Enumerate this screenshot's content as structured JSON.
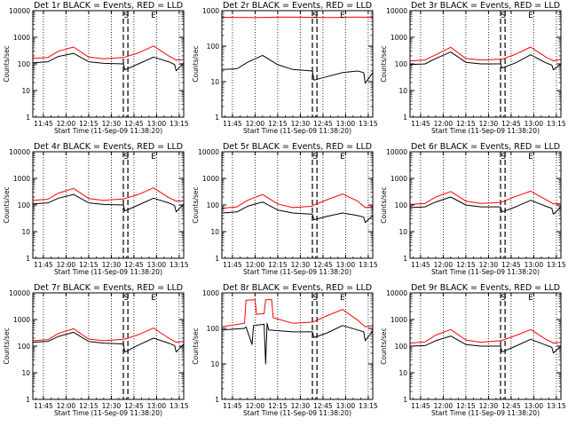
{
  "panel_grid": {
    "columns": 3,
    "rows": 3
  },
  "colors": {
    "events": "#000000",
    "lld": "#ff0000",
    "axes": "#000000"
  },
  "chart_data": [
    {
      "type": "line",
      "title": "Det 1r BLACK = Events, RED = LLD",
      "xlabel": "Start Time (11-Sep-09 11:38:20)",
      "ylabel": "Counts/sec",
      "xlim": [
        "11:38",
        "13:18"
      ],
      "ylim": [
        1,
        10000
      ],
      "yscale": "log",
      "xtick_labels": [
        "11:45",
        "12:00",
        "12:15",
        "12:30",
        "12:45",
        "13:00",
        "13:15"
      ],
      "ytick_labels": [
        "1",
        "10",
        "100",
        "1000",
        "10000"
      ],
      "vlines_dotted": [
        "11:45",
        "12:00",
        "12:15",
        "12:30",
        "12:45",
        "13:00",
        "13:15"
      ],
      "vlines_dashed": [
        "12:38",
        "12:41"
      ],
      "markers": [
        {
          "label": "S",
          "x": "12:41"
        },
        {
          "label": "E",
          "x": "12:58"
        }
      ],
      "series": [
        {
          "x": [
            "11:38",
            "11:48",
            "11:55",
            "12:05",
            "12:15",
            "12:25",
            "12:38",
            "12:39",
            "12:48",
            "12:58",
            "13:08",
            "13:12",
            "13:13",
            "13:18"
          ],
          "values": [
            160,
            175,
            300,
            430,
            180,
            155,
            175,
            180,
            260,
            470,
            200,
            150,
            140,
            145
          ]
        },
        {
          "x": [
            "11:38",
            "11:48",
            "11:55",
            "12:05",
            "12:15",
            "12:25",
            "12:38",
            "12:39",
            "12:48",
            "12:58",
            "13:08",
            "13:12",
            "13:13",
            "13:18"
          ],
          "values": [
            110,
            120,
            190,
            250,
            120,
            105,
            100,
            60,
            100,
            180,
            120,
            95,
            55,
            110
          ]
        }
      ]
    },
    {
      "type": "line",
      "title": "Det 2r BLACK = Events, RED = LLD",
      "xlabel": "Start Time (11-Sep-09 11:38:20)",
      "ylabel": "Counts/sec",
      "xlim": [
        "11:38",
        "13:18"
      ],
      "ylim": [
        1,
        1000
      ],
      "yscale": "log",
      "xtick_labels": [
        "11:45",
        "12:00",
        "12:15",
        "12:30",
        "12:45",
        "13:00",
        "13:15"
      ],
      "ytick_labels": [
        "1",
        "10",
        "100",
        "1000"
      ],
      "vlines_dotted": [
        "11:45",
        "12:00",
        "12:15",
        "12:30",
        "12:45",
        "13:00",
        "13:15"
      ],
      "vlines_dashed": [
        "12:38",
        "12:41"
      ],
      "markers": [
        {
          "label": "S",
          "x": "12:41"
        },
        {
          "label": "E",
          "x": "12:58"
        }
      ],
      "series": [
        {
          "x": [
            "11:38",
            "12:00",
            "12:20",
            "12:38",
            "12:50",
            "13:05",
            "13:18"
          ],
          "values": [
            650,
            640,
            660,
            650,
            640,
            660,
            650
          ]
        },
        {
          "x": [
            "11:38",
            "11:48",
            "11:55",
            "12:05",
            "12:15",
            "12:25",
            "12:38",
            "12:39",
            "12:48",
            "12:58",
            "13:08",
            "13:12",
            "13:13",
            "13:18"
          ],
          "values": [
            22,
            23,
            35,
            55,
            30,
            22,
            20,
            11,
            14,
            18,
            20,
            18,
            9,
            18
          ]
        }
      ]
    },
    {
      "type": "line",
      "title": "Det 3r BLACK = Events, RED = LLD",
      "xlabel": "Start Time (11-Sep-09 11:38:20)",
      "ylabel": "Counts/sec",
      "xlim": [
        "11:38",
        "13:18"
      ],
      "ylim": [
        1,
        10000
      ],
      "yscale": "log",
      "xtick_labels": [
        "11:45",
        "12:00",
        "12:15",
        "12:30",
        "12:45",
        "13:00",
        "13:15"
      ],
      "ytick_labels": [
        "1",
        "10",
        "100",
        "1000",
        "10000"
      ],
      "vlines_dotted": [
        "11:45",
        "12:00",
        "12:15",
        "12:30",
        "12:45",
        "13:00",
        "13:15"
      ],
      "vlines_dashed": [
        "12:38",
        "12:41"
      ],
      "markers": [
        {
          "label": "S",
          "x": "12:41"
        },
        {
          "label": "E",
          "x": "12:58"
        }
      ],
      "series": [
        {
          "x": [
            "11:38",
            "11:48",
            "11:55",
            "12:05",
            "12:15",
            "12:25",
            "12:38",
            "12:39",
            "12:48",
            "12:58",
            "13:08",
            "13:12",
            "13:13",
            "13:18"
          ],
          "values": [
            130,
            140,
            220,
            420,
            160,
            140,
            150,
            150,
            230,
            430,
            180,
            140,
            130,
            150
          ]
        },
        {
          "x": [
            "11:38",
            "11:48",
            "11:55",
            "12:05",
            "12:15",
            "12:25",
            "12:38",
            "12:39",
            "12:48",
            "12:58",
            "13:08",
            "13:12",
            "13:13",
            "13:18"
          ],
          "values": [
            95,
            100,
            160,
            280,
            115,
            100,
            100,
            70,
            110,
            220,
            110,
            90,
            60,
            100
          ]
        }
      ]
    },
    {
      "type": "line",
      "title": "Det 4r BLACK = Events, RED = LLD",
      "xlabel": "Start Time (11-Sep-09 11:38:20)",
      "ylabel": "Counts/sec",
      "xlim": [
        "11:38",
        "13:18"
      ],
      "ylim": [
        1,
        10000
      ],
      "yscale": "log",
      "xtick_labels": [
        "11:45",
        "12:00",
        "12:15",
        "12:30",
        "12:45",
        "13:00",
        "13:15"
      ],
      "ytick_labels": [
        "1",
        "10",
        "100",
        "1000",
        "10000"
      ],
      "vlines_dotted": [
        "11:45",
        "12:00",
        "12:15",
        "12:30",
        "12:45",
        "13:00",
        "13:15"
      ],
      "vlines_dashed": [
        "12:38",
        "12:41"
      ],
      "markers": [
        {
          "label": "S",
          "x": "12:41"
        },
        {
          "label": "E",
          "x": "12:58"
        }
      ],
      "series": [
        {
          "x": [
            "11:38",
            "11:48",
            "11:55",
            "12:05",
            "12:15",
            "12:25",
            "12:38",
            "12:39",
            "12:48",
            "12:58",
            "13:08",
            "13:12",
            "13:13",
            "13:18"
          ],
          "values": [
            150,
            165,
            280,
            420,
            175,
            150,
            170,
            175,
            250,
            440,
            190,
            150,
            140,
            145
          ]
        },
        {
          "x": [
            "11:38",
            "11:48",
            "11:55",
            "12:05",
            "12:15",
            "12:25",
            "12:38",
            "12:39",
            "12:48",
            "12:58",
            "13:08",
            "13:12",
            "13:13",
            "13:18"
          ],
          "values": [
            110,
            120,
            180,
            250,
            120,
            105,
            100,
            60,
            100,
            180,
            120,
            95,
            55,
            110
          ]
        }
      ]
    },
    {
      "type": "line",
      "title": "Det 5r BLACK = Events, RED = LLD",
      "xlabel": "Start Time (11-Sep-09 11:38:20)",
      "ylabel": "Counts/sec",
      "xlim": [
        "11:38",
        "13:18"
      ],
      "ylim": [
        1,
        10000
      ],
      "yscale": "log",
      "xtick_labels": [
        "11:45",
        "12:00",
        "12:15",
        "12:30",
        "12:45",
        "13:00",
        "13:15"
      ],
      "ytick_labels": [
        "1",
        "10",
        "100",
        "1000",
        "10000"
      ],
      "vlines_dotted": [
        "11:45",
        "12:00",
        "12:15",
        "12:30",
        "12:45",
        "13:00",
        "13:15"
      ],
      "vlines_dashed": [
        "12:38",
        "12:41"
      ],
      "markers": [
        {
          "label": "S",
          "x": "12:41"
        },
        {
          "label": "E",
          "x": "12:58"
        }
      ],
      "series": [
        {
          "x": [
            "11:38",
            "11:48",
            "11:55",
            "12:05",
            "12:15",
            "12:25",
            "12:38",
            "12:39",
            "12:48",
            "12:58",
            "13:08",
            "13:12",
            "13:13",
            "13:18"
          ],
          "values": [
            75,
            85,
            150,
            250,
            110,
            80,
            90,
            100,
            160,
            260,
            140,
            90,
            80,
            85
          ]
        },
        {
          "x": [
            "11:38",
            "11:48",
            "11:55",
            "12:05",
            "12:15",
            "12:25",
            "12:38",
            "12:39",
            "12:48",
            "12:58",
            "13:08",
            "13:12",
            "13:13",
            "13:18"
          ],
          "values": [
            50,
            55,
            90,
            130,
            65,
            50,
            45,
            28,
            38,
            50,
            40,
            35,
            22,
            40
          ]
        }
      ]
    },
    {
      "type": "line",
      "title": "Det 6r BLACK = Events, RED = LLD",
      "xlabel": "Start Time (11-Sep-09 11:38:20)",
      "ylabel": "Counts/sec",
      "xlim": [
        "11:38",
        "13:18"
      ],
      "ylim": [
        1,
        10000
      ],
      "yscale": "log",
      "xtick_labels": [
        "11:45",
        "12:00",
        "12:15",
        "12:30",
        "12:45",
        "13:00",
        "13:15"
      ],
      "ytick_labels": [
        "1",
        "10",
        "100",
        "1000",
        "10000"
      ],
      "vlines_dotted": [
        "11:45",
        "12:00",
        "12:15",
        "12:30",
        "12:45",
        "13:00",
        "13:15"
      ],
      "vlines_dashed": [
        "12:38",
        "12:41"
      ],
      "markers": [
        {
          "label": "S",
          "x": "12:41"
        },
        {
          "label": "E",
          "x": "12:58"
        }
      ],
      "series": [
        {
          "x": [
            "11:38",
            "11:48",
            "11:55",
            "12:05",
            "12:15",
            "12:25",
            "12:38",
            "12:39",
            "12:48",
            "12:58",
            "13:08",
            "13:12",
            "13:13",
            "13:18"
          ],
          "values": [
            105,
            115,
            200,
            320,
            140,
            115,
            125,
            130,
            210,
            330,
            160,
            120,
            110,
            115
          ]
        },
        {
          "x": [
            "11:38",
            "11:48",
            "11:55",
            "12:05",
            "12:15",
            "12:25",
            "12:38",
            "12:39",
            "12:48",
            "12:58",
            "13:08",
            "13:12",
            "13:13",
            "13:18"
          ],
          "values": [
            80,
            85,
            130,
            200,
            100,
            85,
            85,
            55,
            85,
            150,
            90,
            75,
            45,
            85
          ]
        }
      ]
    },
    {
      "type": "line",
      "title": "Det 7r BLACK = Events, RED = LLD",
      "xlabel": "Start Time (11-Sep-09 11:38:20)",
      "ylabel": "Counts/sec",
      "xlim": [
        "11:38",
        "13:18"
      ],
      "ylim": [
        1,
        10000
      ],
      "yscale": "log",
      "xtick_labels": [
        "11:45",
        "12:00",
        "12:15",
        "12:30",
        "12:45",
        "13:00",
        "13:15"
      ],
      "ytick_labels": [
        "1",
        "10",
        "100",
        "1000",
        "10000"
      ],
      "vlines_dotted": [
        "11:45",
        "12:00",
        "12:15",
        "12:30",
        "12:45",
        "13:00",
        "13:15"
      ],
      "vlines_dashed": [
        "12:38",
        "12:41"
      ],
      "markers": [
        {
          "label": "S",
          "x": "12:41"
        },
        {
          "label": "E",
          "x": "12:58"
        }
      ],
      "series": [
        {
          "x": [
            "11:38",
            "11:48",
            "11:55",
            "12:05",
            "12:15",
            "12:25",
            "12:38",
            "12:39",
            "12:48",
            "12:58",
            "13:08",
            "13:12",
            "13:13",
            "13:18"
          ],
          "values": [
            160,
            175,
            300,
            450,
            185,
            160,
            180,
            185,
            270,
            480,
            200,
            150,
            140,
            150
          ]
        },
        {
          "x": [
            "11:38",
            "11:48",
            "11:55",
            "12:05",
            "12:15",
            "12:25",
            "12:38",
            "12:39",
            "12:48",
            "12:58",
            "13:08",
            "13:12",
            "13:13",
            "13:18"
          ],
          "values": [
            140,
            150,
            230,
            330,
            150,
            130,
            120,
            60,
            110,
            200,
            130,
            105,
            60,
            120
          ]
        }
      ]
    },
    {
      "type": "line",
      "title": "Det 8r BLACK = Events, RED = LLD",
      "xlabel": "Start Time (11-Sep-09 11:38:20)",
      "ylabel": "Counts/sec",
      "xlim": [
        "11:38",
        "13:18"
      ],
      "ylim": [
        1,
        1000
      ],
      "yscale": "log",
      "xtick_labels": [
        "11:45",
        "12:00",
        "12:15",
        "12:30",
        "12:45",
        "13:00",
        "13:15"
      ],
      "ytick_labels": [
        "1",
        "10",
        "100",
        "1000"
      ],
      "vlines_dotted": [
        "11:45",
        "12:00",
        "12:15",
        "12:30",
        "12:45",
        "13:00",
        "13:15"
      ],
      "vlines_dashed": [
        "12:38",
        "12:41"
      ],
      "markers": [
        {
          "label": "S",
          "x": "12:41"
        },
        {
          "label": "E",
          "x": "12:58"
        }
      ],
      "series": [
        {
          "x": [
            "11:38",
            "11:53",
            "11:54",
            "12:00",
            "12:01",
            "12:06",
            "12:07",
            "12:11",
            "12:12",
            "12:25",
            "12:38",
            "12:39",
            "12:48",
            "12:58",
            "13:08",
            "13:12",
            "13:13",
            "13:18"
          ],
          "values": [
            110,
            140,
            620,
            640,
            250,
            260,
            640,
            650,
            200,
            140,
            150,
            155,
            230,
            340,
            170,
            120,
            110,
            120
          ]
        },
        {
          "x": [
            "11:38",
            "11:53",
            "11:54",
            "11:58",
            "11:59",
            "12:06",
            "12:07",
            "12:08",
            "12:09",
            "12:25",
            "12:38",
            "12:39",
            "12:48",
            "12:58",
            "13:08",
            "13:12",
            "13:13",
            "13:18"
          ],
          "values": [
            90,
            100,
            110,
            35,
            120,
            130,
            10,
            140,
            90,
            80,
            80,
            55,
            75,
            120,
            90,
            80,
            45,
            85
          ]
        }
      ]
    },
    {
      "type": "line",
      "title": "Det 9r BLACK = Events, RED = LLD",
      "xlabel": "Start Time (11-Sep-09 11:38:20)",
      "ylabel": "Counts/sec",
      "xlim": [
        "11:38",
        "13:18"
      ],
      "ylim": [
        1,
        10000
      ],
      "yscale": "log",
      "xtick_labels": [
        "11:45",
        "12:00",
        "12:15",
        "12:30",
        "12:45",
        "13:00",
        "13:15"
      ],
      "ytick_labels": [
        "1",
        "10",
        "100",
        "1000",
        "10000"
      ],
      "vlines_dotted": [
        "11:45",
        "12:00",
        "12:15",
        "12:30",
        "12:45",
        "13:00",
        "13:15"
      ],
      "vlines_dashed": [
        "12:38",
        "12:41"
      ],
      "markers": [
        {
          "label": "S",
          "x": "12:41"
        },
        {
          "label": "E",
          "x": "12:58"
        }
      ],
      "series": [
        {
          "x": [
            "11:38",
            "11:48",
            "11:55",
            "12:05",
            "12:15",
            "12:25",
            "12:38",
            "12:39",
            "12:48",
            "12:58",
            "13:08",
            "13:12",
            "13:13",
            "13:18"
          ],
          "values": [
            130,
            145,
            260,
            420,
            170,
            140,
            160,
            165,
            250,
            420,
            180,
            140,
            130,
            140
          ]
        },
        {
          "x": [
            "11:38",
            "11:48",
            "11:55",
            "12:05",
            "12:15",
            "12:25",
            "12:38",
            "12:39",
            "12:48",
            "12:58",
            "13:08",
            "13:12",
            "13:13",
            "13:18"
          ],
          "values": [
            100,
            105,
            160,
            240,
            115,
            100,
            100,
            60,
            100,
            180,
            110,
            90,
            55,
            100
          ]
        }
      ]
    }
  ]
}
